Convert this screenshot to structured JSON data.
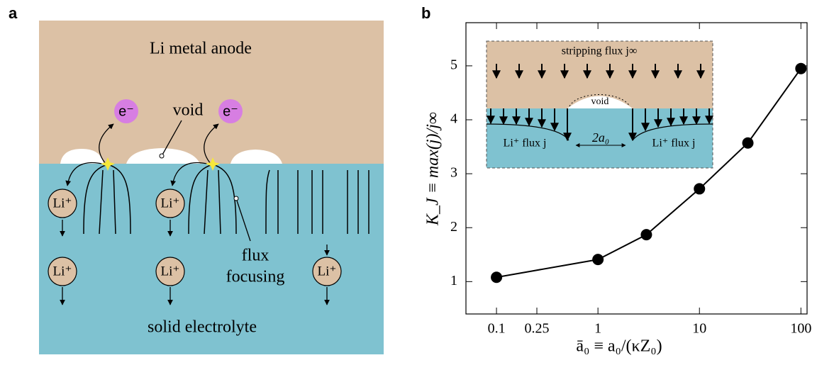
{
  "panel_labels": [
    "a",
    "b"
  ],
  "diagram": {
    "anode_label": "Li metal anode",
    "electrolyte_label": "solid electrolyte",
    "void_label": "void",
    "electrons": [
      "e⁻",
      "e⁻"
    ],
    "ions": [
      "Li⁺",
      "Li⁺",
      "Li⁺",
      "Li⁺",
      "Li⁺"
    ],
    "flux_label": [
      "flux",
      "focusing"
    ]
  },
  "chart_data": {
    "type": "line",
    "x": [
      0.1,
      1,
      3,
      10,
      30,
      100
    ],
    "values": [
      1.08,
      1.41,
      1.87,
      2.72,
      3.57,
      4.95
    ],
    "color": "#000000",
    "xlabel": "ā₀ ≡ a₀/(κZ₀)",
    "ylabel": "K_J ≡ max(j)/j∞",
    "xscale": "log",
    "xlim": [
      0.05,
      115
    ],
    "ylim": [
      0.4,
      5.8
    ],
    "xticks": [
      0.1,
      0.25,
      1,
      10,
      100
    ],
    "yticks": [
      1,
      2,
      3,
      4,
      5
    ],
    "grid": false,
    "inset": {
      "top_label": "stripping flux j∞",
      "void_label": "void",
      "flux_labels": [
        "Li⁺ flux j",
        "Li⁺ flux j"
      ],
      "gap_label": "2a₀"
    }
  }
}
